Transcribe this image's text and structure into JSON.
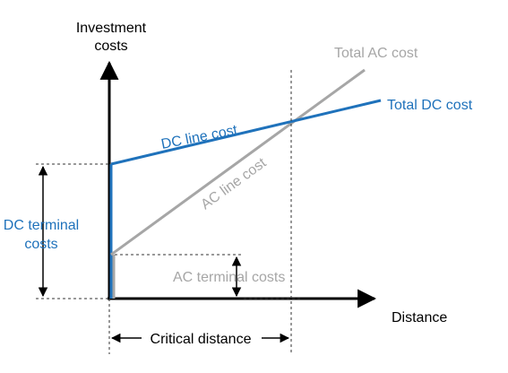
{
  "colors": {
    "dc_blue": "#1f72bb",
    "ac_gray": "#a6a6a6",
    "axis_black": "#000000",
    "dash_gray": "#333333"
  },
  "axes": {
    "y_label_line1": "Investment",
    "y_label_line2": "costs",
    "x_label": "Distance"
  },
  "labels": {
    "total_ac_cost": "Total AC cost",
    "total_dc_cost": "Total DC cost",
    "dc_line_cost": "DC line cost",
    "ac_line_cost": "AC line cost",
    "dc_terminal_costs_line1": "DC terminal",
    "dc_terminal_costs_line2": "costs",
    "ac_terminal_costs": "AC terminal costs",
    "critical_distance": "Critical distance"
  }
}
